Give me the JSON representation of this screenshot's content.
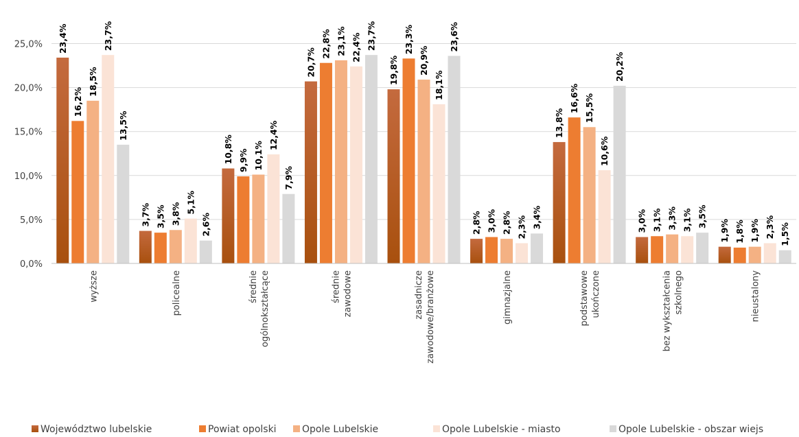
{
  "chart_data": {
    "type": "bar",
    "categories": [
      [
        "wyższe"
      ],
      [
        "policealne"
      ],
      [
        "średnie",
        "ogólnokształcące"
      ],
      [
        "średnie",
        "zawodowe"
      ],
      [
        "zasadnicze",
        "zawodowe/branżowe"
      ],
      [
        "gimnazjalne"
      ],
      [
        "podstawowe",
        "ukończone"
      ],
      [
        "bez wykształcenia",
        "szkolnego"
      ],
      [
        "nieustalony"
      ]
    ],
    "series": [
      {
        "name": "Województwo lubelskie",
        "color": "#b5591e",
        "gradient": [
          "#c46a3e",
          "#a8500e"
        ],
        "values": [
          23.4,
          3.7,
          10.8,
          20.7,
          19.8,
          2.8,
          13.8,
          3.0,
          1.9
        ],
        "labels": [
          "23,4%",
          "3,7%",
          "10,8%",
          "20,7%",
          "19,8%",
          "2,8%",
          "13,8%",
          "3,0%",
          "1,9%"
        ]
      },
      {
        "name": "Powiat opolski",
        "color": "#ed7d31",
        "values": [
          16.2,
          3.5,
          9.9,
          22.8,
          23.3,
          3.0,
          16.6,
          3.1,
          1.8
        ],
        "labels": [
          "16,2%",
          "3,5%",
          "9,9%",
          "22,8%",
          "23,3%",
          "3,0%",
          "16,6%",
          "3,1%",
          "1,8%"
        ]
      },
      {
        "name": "Opole Lubelskie",
        "color": "#f4b183",
        "values": [
          18.5,
          3.8,
          10.1,
          23.1,
          20.9,
          2.8,
          15.5,
          3.3,
          1.9
        ],
        "labels": [
          "18,5%",
          "3,8%",
          "10,1%",
          "23,1%",
          "20,9%",
          "2,8%",
          "15,5%",
          "3,3%",
          "1,9%"
        ]
      },
      {
        "name": "Opole Lubelskie - miasto",
        "color": "#fbe3d6",
        "values": [
          23.7,
          5.1,
          12.4,
          22.4,
          18.1,
          2.3,
          10.6,
          3.1,
          2.3
        ],
        "labels": [
          "23,7%",
          "5,1%",
          "12,4%",
          "22,4%",
          "18,1%",
          "2,3%",
          "10,6%",
          "3,1%",
          "2,3%"
        ]
      },
      {
        "name": "Opole Lubelskie - obszar wiejs",
        "color": "#d9d9d9",
        "values": [
          13.5,
          2.6,
          7.9,
          23.7,
          23.6,
          3.4,
          20.2,
          3.5,
          1.5
        ],
        "labels": [
          "13,5%",
          "2,6%",
          "7,9%",
          "23,7%",
          "23,6%",
          "3,4%",
          "20,2%",
          "3,5%",
          "1,5%"
        ]
      }
    ],
    "y_ticks": [
      0,
      5,
      10,
      15,
      20,
      25
    ],
    "y_tick_labels": [
      "0,0%",
      "5,0%",
      "10,0%",
      "15,0%",
      "20,0%",
      "25,0%"
    ],
    "ylim": [
      0,
      25
    ],
    "grid": true,
    "legend": "bottom"
  }
}
